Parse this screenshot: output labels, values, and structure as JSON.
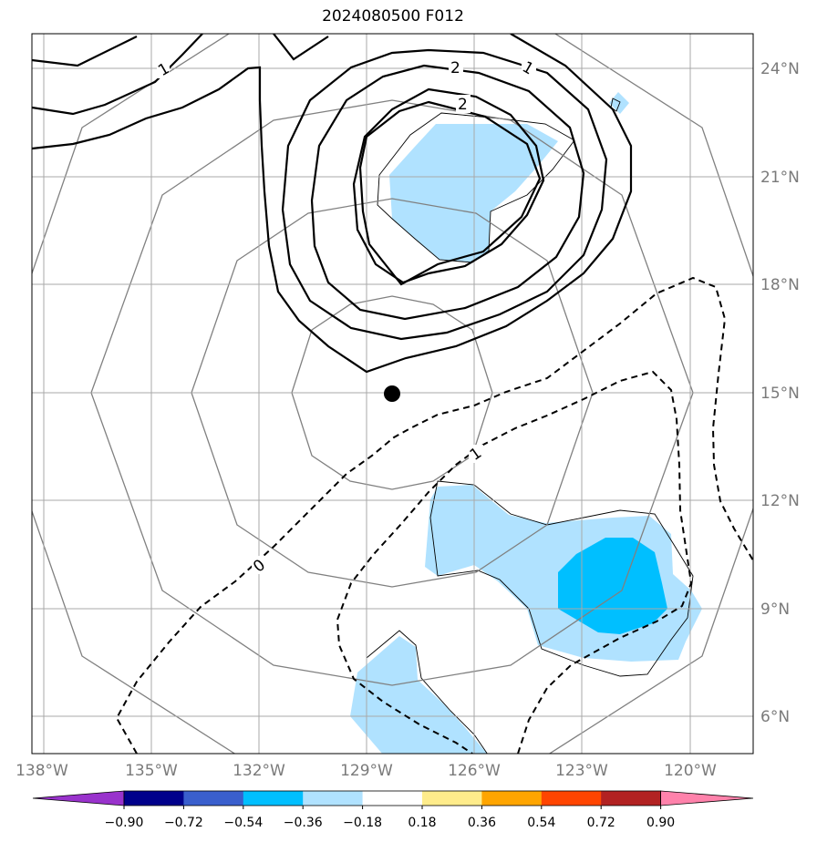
{
  "title": "2024080500 F012",
  "lat_labels": [
    "24°N",
    "21°N",
    "18°N",
    "15°N",
    "12°N",
    "9°N",
    "6°N"
  ],
  "lon_labels": [
    "138°W",
    "135°W",
    "132°W",
    "129°W",
    "126°W",
    "123°W",
    "120°W"
  ],
  "contour_labels": [
    "1",
    "2",
    "1",
    "2",
    "1",
    "0"
  ],
  "colorbar": {
    "colors": [
      "#9932CC",
      "#00008B",
      "#3A5FCD",
      "#00BFFF",
      "#B0E2FF",
      "#FFFFFF",
      "#FFEC8B",
      "#FFA500",
      "#FF4500",
      "#B22222",
      "#FF82AB"
    ],
    "ticks": [
      "−0.90",
      "−0.72",
      "−0.54",
      "−0.36",
      "−0.18",
      "0.18",
      "0.36",
      "0.54",
      "0.72",
      "0.90"
    ]
  },
  "storm_center": {
    "lon": -128.9,
    "lat": 15.0
  }
}
